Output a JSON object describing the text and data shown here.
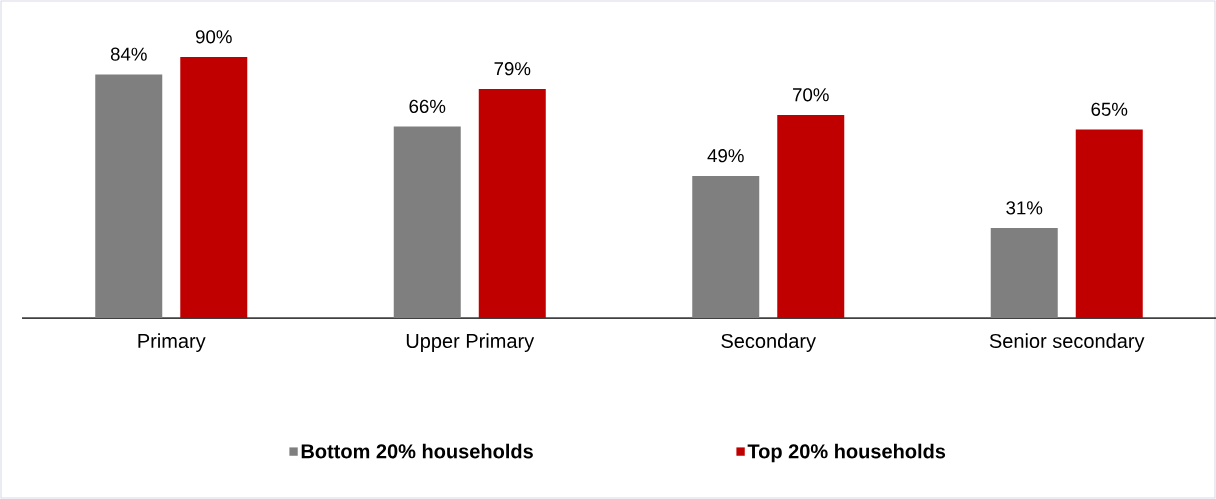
{
  "chart_data": {
    "type": "bar",
    "categories": [
      "Primary",
      "Upper Primary",
      "Secondary",
      "Senior secondary"
    ],
    "series": [
      {
        "name": "Bottom 20% households",
        "color": "#7f7f7f",
        "values": [
          84,
          66,
          49,
          31
        ],
        "value_labels": [
          "84%",
          "66%",
          "49%",
          "31%"
        ]
      },
      {
        "name": "Top 20% households",
        "color": "#c00000",
        "values": [
          90,
          79,
          70,
          65
        ],
        "value_labels": [
          "90%",
          "79%",
          "70%",
          "65%"
        ]
      }
    ],
    "legend": "bottom"
  }
}
